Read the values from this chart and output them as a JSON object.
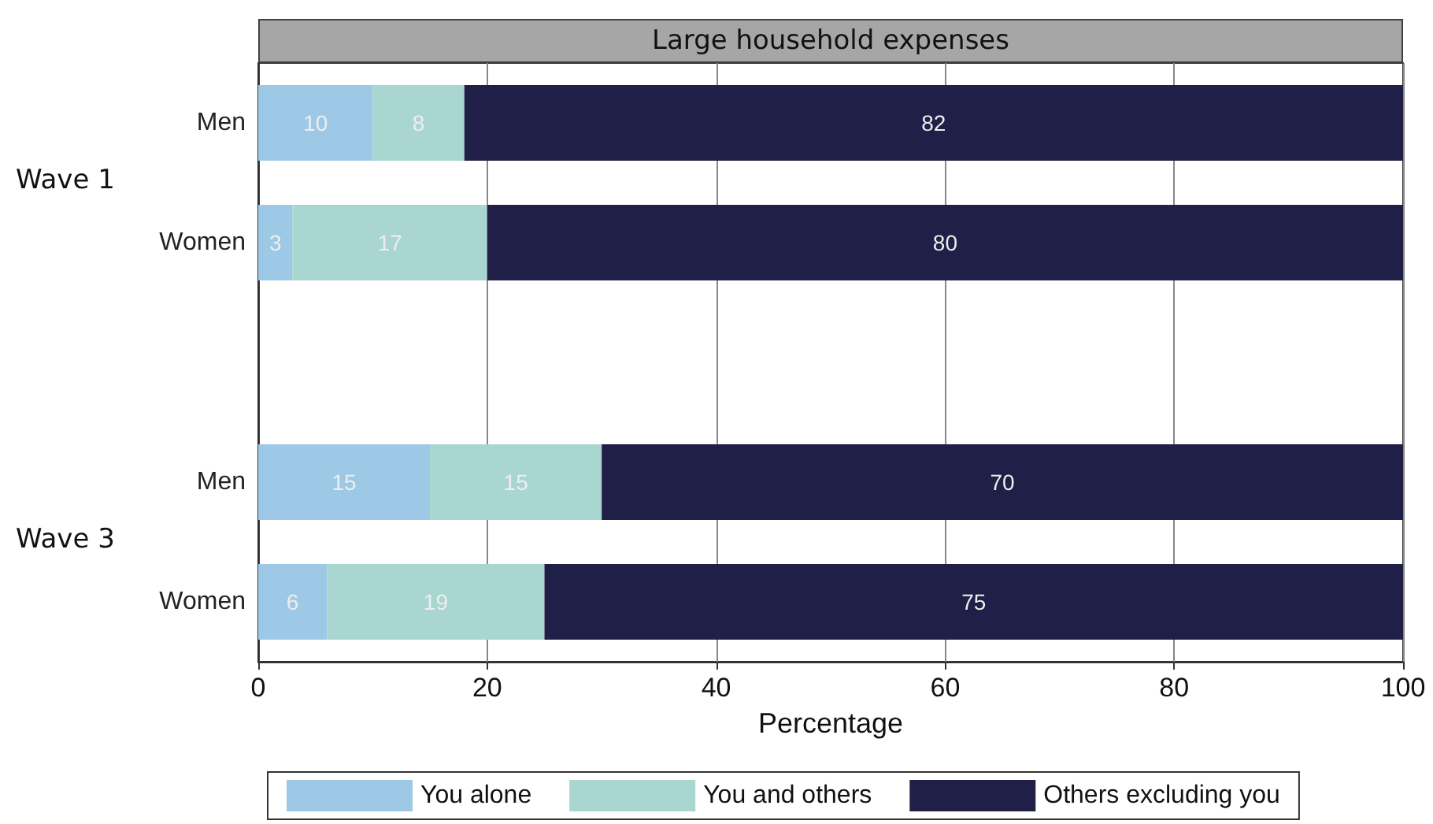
{
  "chart_data": {
    "type": "bar",
    "orientation": "horizontal",
    "stacked": true,
    "title": "Large household expenses",
    "xlabel": "Percentage",
    "categories": [
      "Men",
      "Women",
      null,
      "Men",
      "Women"
    ],
    "series": [
      {
        "name": "You alone",
        "color": "#9dc9e6",
        "values": [
          10,
          3,
          null,
          15,
          6
        ]
      },
      {
        "name": "You and others",
        "color": "#a9d6d1",
        "values": [
          8,
          17,
          null,
          15,
          19
        ]
      },
      {
        "name": "Others excluding you",
        "color": "#1f1f47",
        "values": [
          82,
          80,
          null,
          70,
          75
        ]
      }
    ],
    "annotations": [
      "Wave 1",
      "Wave 3"
    ],
    "xlim": [
      0,
      100
    ],
    "xticks": [
      0,
      20,
      40,
      60,
      80,
      100
    ],
    "grid": "x",
    "legend": "bottom",
    "data_labels": true
  }
}
